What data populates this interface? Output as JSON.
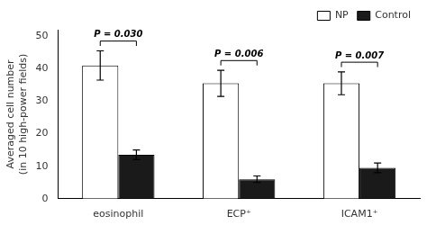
{
  "chart_data": {
    "type": "bar",
    "categories": [
      "eosinophil",
      "ECP⁺",
      "ICAM1⁺"
    ],
    "series": [
      {
        "name": "NP",
        "color": "#ffffff",
        "values": [
          41,
          35.5,
          35.5
        ],
        "errors": [
          4.5,
          4.0,
          3.5
        ]
      },
      {
        "name": "Control",
        "color": "#1a1a1a",
        "values": [
          13.5,
          6.0,
          9.5
        ],
        "errors": [
          1.5,
          1.0,
          1.5
        ]
      }
    ],
    "ylabel": "Averaged cell number\n(in 10 high-power fields)",
    "ylim": [
      0,
      52
    ],
    "yticks": [
      0,
      10,
      20,
      30,
      40,
      50
    ],
    "annotations": [
      {
        "x": "eosinophil",
        "text": "P = 0.030"
      },
      {
        "x": "ECP⁺",
        "text": "P = 0.006"
      },
      {
        "x": "ICAM1⁺",
        "text": "P = 0.007"
      }
    ],
    "legend": "upper right",
    "grid": false
  }
}
